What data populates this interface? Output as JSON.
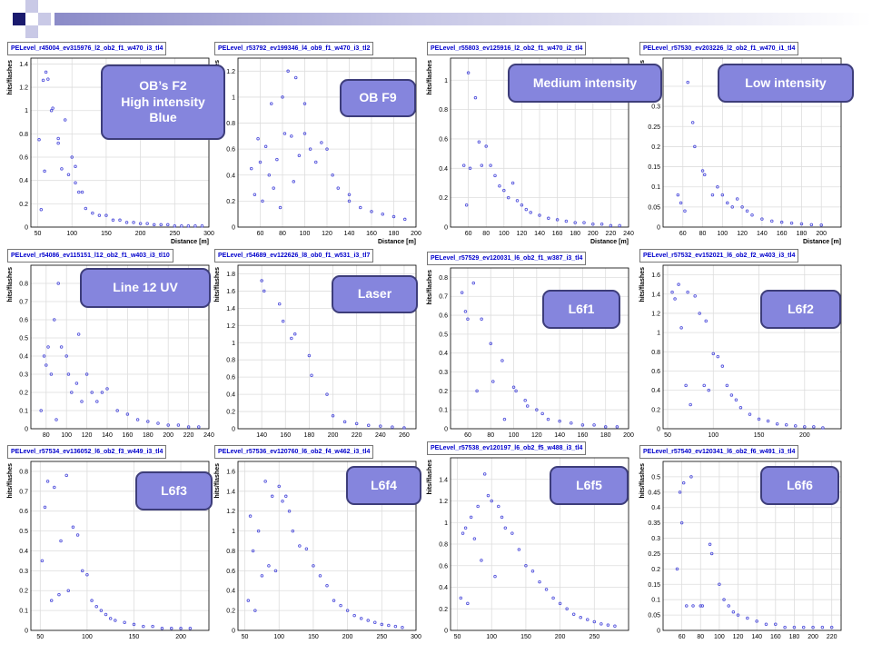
{
  "slide": {
    "callouts": [
      {
        "text": "OB’s F2\nHigh intensity\nBlue"
      },
      {
        "text": "OB F9"
      },
      {
        "text": "Medium intensity"
      },
      {
        "text": "Low intensity"
      },
      {
        "text": "Line 12 UV"
      },
      {
        "text": "Laser"
      },
      {
        "text": "L6f1"
      },
      {
        "text": "L6f2"
      },
      {
        "text": "L6f3"
      },
      {
        "text": "L6f4"
      },
      {
        "text": "L6f5"
      },
      {
        "text": "L6f6"
      }
    ],
    "colors": {
      "marker": "#5555dd",
      "grid": "#dddddd",
      "callout_fill": "#8585dd",
      "callout_border": "#3d3d7a",
      "title_text": "#0000cc"
    }
  },
  "chart_data": [
    {
      "type": "scatter",
      "title": "PELevel_r45004_ev315976_l2_ob2_f1_w470_i3_tl4",
      "xlabel": "Distance [m]",
      "ylabel": "hits/flashes",
      "xlim": [
        40,
        300
      ],
      "ylim": [
        0,
        1.45
      ],
      "xticks": [
        50,
        100,
        150,
        200,
        250,
        300
      ],
      "yticks": [
        0,
        0.2,
        0.4,
        0.6,
        0.8,
        1,
        1.2,
        1.4
      ],
      "x": [
        52,
        55,
        58,
        60,
        62,
        65,
        70,
        72,
        80,
        80,
        85,
        90,
        95,
        100,
        105,
        105,
        110,
        115,
        120,
        130,
        140,
        150,
        160,
        170,
        180,
        190,
        200,
        210,
        220,
        230,
        240,
        250,
        260,
        270,
        280,
        290
      ],
      "y": [
        0.75,
        0.15,
        1.26,
        0.48,
        1.33,
        1.27,
        1.0,
        1.02,
        0.72,
        0.76,
        0.5,
        0.92,
        0.45,
        0.6,
        0.52,
        0.38,
        0.3,
        0.3,
        0.16,
        0.12,
        0.1,
        0.1,
        0.06,
        0.06,
        0.04,
        0.04,
        0.03,
        0.03,
        0.02,
        0.02,
        0.02,
        0.01,
        0.01,
        0.01,
        0.01,
        0.01
      ]
    },
    {
      "type": "scatter",
      "title": "PELevel_r53792_ev199346_l4_ob9_f1_w470_i3_tl2",
      "xlabel": "Distance [m]",
      "ylabel": "hits/flashes",
      "xlim": [
        40,
        200
      ],
      "ylim": [
        0,
        1.3
      ],
      "xticks": [
        60,
        80,
        100,
        120,
        140,
        160,
        180,
        200
      ],
      "yticks": [
        0,
        0.2,
        0.4,
        0.6,
        0.8,
        1,
        1.2
      ],
      "x": [
        52,
        55,
        58,
        60,
        62,
        65,
        68,
        70,
        72,
        75,
        78,
        80,
        82,
        85,
        88,
        90,
        92,
        95,
        100,
        100,
        105,
        110,
        115,
        120,
        125,
        130,
        140,
        140,
        150,
        160,
        170,
        180,
        190
      ],
      "y": [
        0.45,
        0.25,
        0.68,
        0.5,
        0.2,
        0.62,
        0.4,
        0.95,
        0.3,
        0.52,
        0.15,
        1.0,
        0.72,
        1.2,
        0.7,
        0.35,
        1.15,
        0.55,
        0.95,
        0.72,
        0.6,
        0.5,
        0.65,
        0.6,
        0.4,
        0.3,
        0.25,
        0.2,
        0.15,
        0.12,
        0.1,
        0.08,
        0.06
      ]
    },
    {
      "type": "scatter",
      "title": "PELevel_r55803_ev125916_l2_ob2_f1_w470_i2_tl4",
      "xlabel": "Distance [m]",
      "ylabel": "hits/flashes",
      "xlim": [
        40,
        240
      ],
      "ylim": [
        0,
        1.15
      ],
      "xticks": [
        60,
        80,
        100,
        120,
        140,
        160,
        180,
        200,
        220,
        240
      ],
      "yticks": [
        0,
        0.2,
        0.4,
        0.6,
        0.8,
        1
      ],
      "x": [
        55,
        58,
        60,
        62,
        68,
        72,
        75,
        80,
        85,
        90,
        95,
        100,
        105,
        110,
        115,
        120,
        125,
        130,
        140,
        150,
        160,
        170,
        180,
        190,
        200,
        210,
        220,
        230
      ],
      "y": [
        0.42,
        0.15,
        1.05,
        0.4,
        0.88,
        0.58,
        0.42,
        0.55,
        0.42,
        0.35,
        0.28,
        0.25,
        0.2,
        0.3,
        0.18,
        0.15,
        0.12,
        0.1,
        0.08,
        0.06,
        0.05,
        0.04,
        0.03,
        0.03,
        0.02,
        0.02,
        0.01,
        0.01
      ]
    },
    {
      "type": "scatter",
      "title": "PELevel_r57530_ev203226_l2_ob2_f1_w470_i1_tl4",
      "xlabel": "Distance [m]",
      "ylabel": "hits/flashes",
      "xlim": [
        40,
        220
      ],
      "ylim": [
        0,
        0.42
      ],
      "xticks": [
        60,
        80,
        100,
        120,
        140,
        160,
        180,
        200
      ],
      "yticks": [
        0,
        0.05,
        0.1,
        0.15,
        0.2,
        0.25,
        0.3,
        0.35
      ],
      "x": [
        55,
        58,
        62,
        65,
        70,
        72,
        80,
        82,
        90,
        95,
        100,
        105,
        110,
        115,
        120,
        125,
        130,
        140,
        150,
        160,
        170,
        180,
        190,
        200
      ],
      "y": [
        0.08,
        0.06,
        0.04,
        0.36,
        0.26,
        0.2,
        0.14,
        0.13,
        0.08,
        0.1,
        0.08,
        0.06,
        0.05,
        0.07,
        0.05,
        0.04,
        0.03,
        0.02,
        0.015,
        0.012,
        0.01,
        0.008,
        0.006,
        0.005
      ]
    },
    {
      "type": "scatter",
      "title": "PELevel_r54086_ev115151_l12_ob2_f1_w403_i3_tl10",
      "xlabel": "",
      "ylabel": "hits/flashes",
      "xlim": [
        65,
        240
      ],
      "ylim": [
        0,
        0.9
      ],
      "xticks": [
        80,
        100,
        120,
        140,
        160,
        180,
        200,
        220,
        240
      ],
      "yticks": [
        0,
        0.1,
        0.2,
        0.3,
        0.4,
        0.5,
        0.6,
        0.7,
        0.8
      ],
      "x": [
        75,
        78,
        80,
        82,
        85,
        88,
        90,
        92,
        95,
        100,
        102,
        105,
        110,
        112,
        115,
        120,
        125,
        130,
        135,
        140,
        150,
        160,
        170,
        180,
        190,
        200,
        210,
        220,
        230
      ],
      "y": [
        0.1,
        0.4,
        0.35,
        0.45,
        0.3,
        0.6,
        0.05,
        0.8,
        0.45,
        0.4,
        0.3,
        0.2,
        0.25,
        0.52,
        0.15,
        0.3,
        0.2,
        0.15,
        0.2,
        0.22,
        0.1,
        0.08,
        0.05,
        0.04,
        0.03,
        0.02,
        0.02,
        0.01,
        0.01
      ]
    },
    {
      "type": "scatter",
      "title": "PELevel_r54689_ev122626_l8_ob0_f1_w531_i3_tl7",
      "xlabel": "",
      "ylabel": "hits/flashes",
      "xlim": [
        120,
        270
      ],
      "ylim": [
        0,
        1.9
      ],
      "xticks": [
        140,
        160,
        180,
        200,
        220,
        240,
        260
      ],
      "yticks": [
        0,
        0.2,
        0.4,
        0.6,
        0.8,
        1,
        1.2,
        1.4,
        1.6,
        1.8
      ],
      "x": [
        140,
        142,
        155,
        158,
        165,
        168,
        180,
        182,
        195,
        200,
        210,
        220,
        230,
        240,
        250,
        260
      ],
      "y": [
        1.72,
        1.6,
        1.45,
        1.25,
        1.05,
        1.1,
        0.85,
        0.62,
        0.4,
        0.15,
        0.08,
        0.06,
        0.04,
        0.03,
        0.02,
        0.01
      ]
    },
    {
      "type": "scatter",
      "title": "PELevel_r57529_ev120031_l6_ob2_f1_w387_i3_tl4",
      "xlabel": "",
      "ylabel": "hits/flashes",
      "xlim": [
        45,
        200
      ],
      "ylim": [
        0,
        0.85
      ],
      "xticks": [
        60,
        80,
        100,
        120,
        140,
        160,
        180,
        200
      ],
      "yticks": [
        0,
        0.1,
        0.2,
        0.3,
        0.4,
        0.5,
        0.6,
        0.7,
        0.8
      ],
      "x": [
        55,
        58,
        60,
        65,
        68,
        72,
        80,
        82,
        90,
        92,
        100,
        102,
        110,
        112,
        120,
        125,
        130,
        140,
        150,
        160,
        170,
        180,
        190
      ],
      "y": [
        0.72,
        0.62,
        0.58,
        0.77,
        0.2,
        0.58,
        0.45,
        0.25,
        0.36,
        0.05,
        0.22,
        0.2,
        0.15,
        0.12,
        0.1,
        0.08,
        0.05,
        0.04,
        0.03,
        0.02,
        0.02,
        0.01,
        0.01
      ]
    },
    {
      "type": "scatter",
      "title": "PELevel_r57532_ev152021_l6_ob2_f2_w403_i3_tl4",
      "xlabel": "",
      "ylabel": "hits/flashes",
      "xlim": [
        45,
        240
      ],
      "ylim": [
        0,
        1.7
      ],
      "xticks": [
        50,
        100,
        150,
        200
      ],
      "yticks": [
        0,
        0.2,
        0.4,
        0.6,
        0.8,
        1,
        1.2,
        1.4,
        1.6
      ],
      "x": [
        55,
        58,
        62,
        65,
        70,
        72,
        75,
        80,
        85,
        90,
        92,
        95,
        100,
        105,
        110,
        115,
        120,
        125,
        130,
        140,
        150,
        160,
        170,
        180,
        190,
        200,
        210,
        220
      ],
      "y": [
        1.42,
        1.35,
        1.5,
        1.05,
        0.45,
        1.42,
        0.25,
        1.38,
        1.2,
        0.45,
        1.12,
        0.4,
        0.78,
        0.75,
        0.65,
        0.45,
        0.35,
        0.3,
        0.22,
        0.15,
        0.1,
        0.08,
        0.05,
        0.04,
        0.03,
        0.02,
        0.02,
        0.01
      ]
    },
    {
      "type": "scatter",
      "title": "PELevel_r57534_ev136052_l6_ob2_f3_w449_i3_tl4",
      "xlabel": "",
      "ylabel": "hits/flashes",
      "xlim": [
        40,
        230
      ],
      "ylim": [
        0,
        0.85
      ],
      "xticks": [
        50,
        100,
        150,
        200
      ],
      "yticks": [
        0,
        0.1,
        0.2,
        0.3,
        0.4,
        0.5,
        0.6,
        0.7,
        0.8
      ],
      "x": [
        52,
        55,
        58,
        62,
        65,
        70,
        72,
        78,
        80,
        85,
        90,
        95,
        100,
        105,
        110,
        115,
        120,
        125,
        130,
        140,
        150,
        160,
        170,
        180,
        190,
        200,
        210
      ],
      "y": [
        0.35,
        0.62,
        0.75,
        0.15,
        0.72,
        0.18,
        0.45,
        0.78,
        0.2,
        0.52,
        0.48,
        0.3,
        0.28,
        0.15,
        0.12,
        0.1,
        0.08,
        0.06,
        0.05,
        0.04,
        0.03,
        0.02,
        0.02,
        0.01,
        0.01,
        0.01,
        0.01
      ]
    },
    {
      "type": "scatter",
      "title": "PELevel_r57536_ev120760_l6_ob2_f4_w462_i3_tl4",
      "xlabel": "",
      "ylabel": "hits/flashes",
      "xlim": [
        40,
        300
      ],
      "ylim": [
        0,
        1.7
      ],
      "xticks": [
        50,
        100,
        150,
        200,
        250,
        300
      ],
      "yticks": [
        0,
        0.2,
        0.4,
        0.6,
        0.8,
        1,
        1.2,
        1.4,
        1.6
      ],
      "x": [
        55,
        58,
        62,
        65,
        70,
        75,
        80,
        85,
        90,
        95,
        100,
        105,
        110,
        115,
        120,
        130,
        140,
        150,
        160,
        170,
        180,
        190,
        200,
        210,
        220,
        230,
        240,
        250,
        260,
        270,
        280
      ],
      "y": [
        0.3,
        1.15,
        0.8,
        0.2,
        1.0,
        0.55,
        1.5,
        0.65,
        1.35,
        0.6,
        1.45,
        1.3,
        1.35,
        1.2,
        1.0,
        0.85,
        0.82,
        0.65,
        0.55,
        0.45,
        0.3,
        0.25,
        0.2,
        0.15,
        0.12,
        0.1,
        0.08,
        0.06,
        0.05,
        0.04,
        0.03
      ]
    },
    {
      "type": "scatter",
      "title": "PELevel_r57538_ev120197_l6_ob2_f5_w488_i3_tl4",
      "xlabel": "",
      "ylabel": "hits/flashes",
      "xlim": [
        40,
        300
      ],
      "ylim": [
        0,
        1.6
      ],
      "xticks": [
        50,
        100,
        150,
        200,
        250
      ],
      "yticks": [
        0,
        0.2,
        0.4,
        0.6,
        0.8,
        1,
        1.2,
        1.4
      ],
      "x": [
        55,
        58,
        62,
        65,
        70,
        75,
        80,
        85,
        90,
        95,
        100,
        105,
        110,
        115,
        120,
        130,
        140,
        150,
        160,
        170,
        180,
        190,
        200,
        210,
        220,
        230,
        240,
        250,
        260,
        270,
        280
      ],
      "y": [
        0.3,
        0.9,
        0.95,
        0.25,
        1.05,
        0.85,
        1.15,
        0.65,
        1.45,
        1.25,
        1.2,
        0.5,
        1.15,
        1.05,
        0.95,
        0.9,
        0.75,
        0.6,
        0.55,
        0.45,
        0.38,
        0.3,
        0.25,
        0.2,
        0.15,
        0.12,
        0.1,
        0.08,
        0.06,
        0.05,
        0.04
      ]
    },
    {
      "type": "scatter",
      "title": "PELevel_r57540_ev120341_l6_ob2_f6_w491_i3_tl4",
      "xlabel": "",
      "ylabel": "hits/flashes",
      "xlim": [
        40,
        230
      ],
      "ylim": [
        0,
        0.55
      ],
      "xticks": [
        60,
        80,
        100,
        120,
        140,
        160,
        180,
        200,
        220
      ],
      "yticks": [
        0,
        0.05,
        0.1,
        0.15,
        0.2,
        0.25,
        0.3,
        0.35,
        0.4,
        0.45,
        0.5
      ],
      "x": [
        55,
        58,
        60,
        62,
        65,
        70,
        72,
        80,
        82,
        90,
        92,
        100,
        105,
        110,
        115,
        120,
        130,
        140,
        150,
        160,
        170,
        180,
        190,
        200,
        210,
        220
      ],
      "y": [
        0.2,
        0.45,
        0.35,
        0.48,
        0.08,
        0.5,
        0.08,
        0.08,
        0.08,
        0.28,
        0.25,
        0.15,
        0.1,
        0.08,
        0.06,
        0.05,
        0.04,
        0.03,
        0.02,
        0.02,
        0.01,
        0.01,
        0.01,
        0.01,
        0.01,
        0.01
      ]
    }
  ]
}
